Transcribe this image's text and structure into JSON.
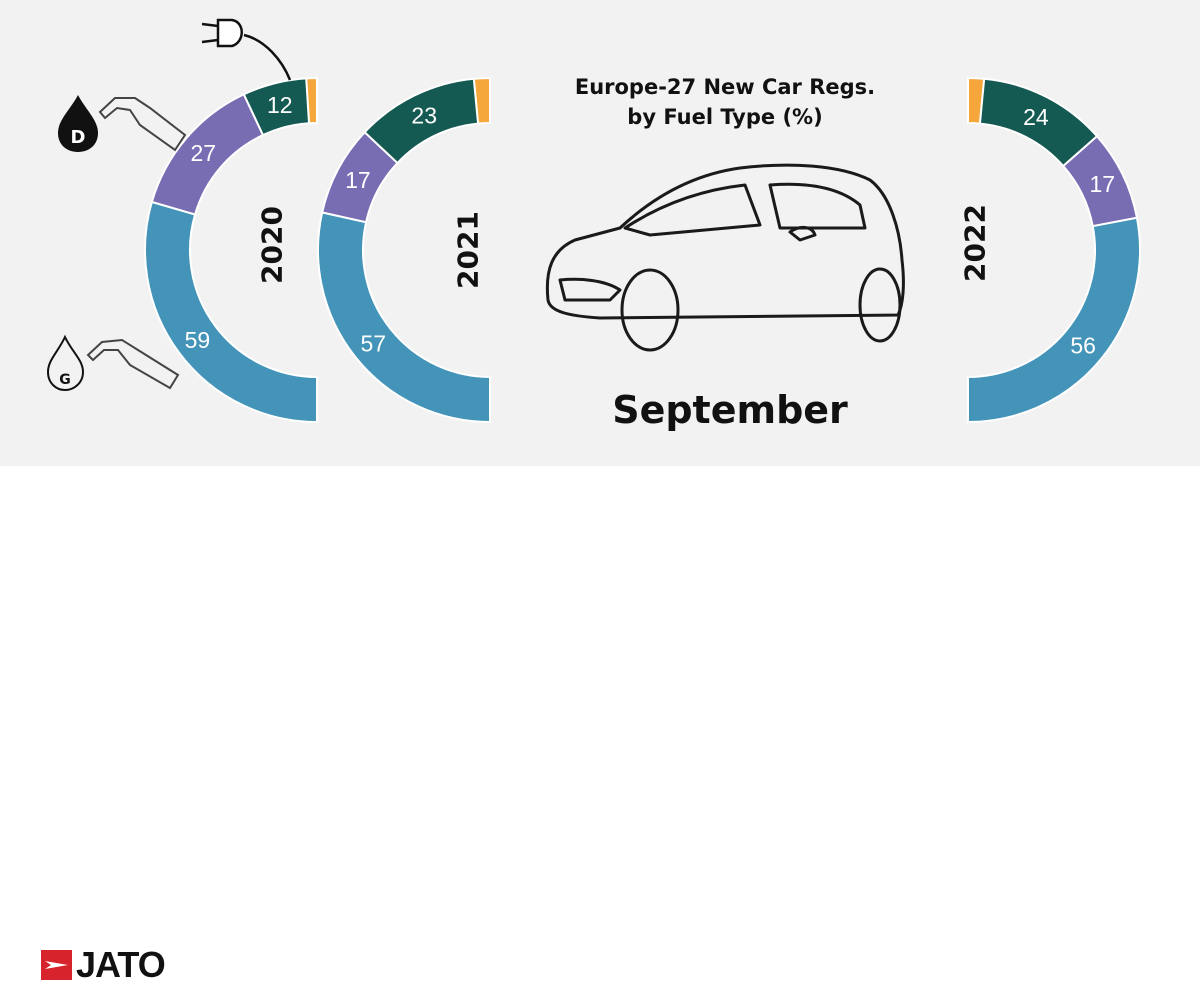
{
  "chart_data": {
    "type": "pie",
    "title": "Europe-27 New Car Regs.\nby Fuel Type (%)",
    "subtitle": "September",
    "colors": {
      "petrol": "#4394b8",
      "diesel": "#786db3",
      "electric": "#155a52",
      "other": "#f5a73c"
    },
    "charts": [
      {
        "year": "2020",
        "side": "left",
        "slices": [
          {
            "fuel": "other",
            "value": 2,
            "label": ""
          },
          {
            "fuel": "electric",
            "value": 12,
            "label": "12"
          },
          {
            "fuel": "diesel",
            "value": 27,
            "label": "27"
          },
          {
            "fuel": "petrol",
            "value": 59,
            "label": "59"
          }
        ]
      },
      {
        "year": "2021",
        "side": "left",
        "slices": [
          {
            "fuel": "other",
            "value": 3,
            "label": ""
          },
          {
            "fuel": "electric",
            "value": 23,
            "label": "23"
          },
          {
            "fuel": "diesel",
            "value": 17,
            "label": "17"
          },
          {
            "fuel": "petrol",
            "value": 57,
            "label": "57"
          }
        ]
      },
      {
        "year": "2022",
        "side": "right",
        "slices": [
          {
            "fuel": "other",
            "value": 3,
            "label": ""
          },
          {
            "fuel": "electric",
            "value": 24,
            "label": "24"
          },
          {
            "fuel": "diesel",
            "value": 17,
            "label": "17"
          },
          {
            "fuel": "petrol",
            "value": 56,
            "label": "56"
          }
        ]
      }
    ]
  },
  "title_line1": "Europe-27 New Car Regs.",
  "title_line2": "by Fuel Type (%)",
  "month": "September",
  "years": [
    "2020",
    "2021",
    "2022"
  ],
  "icons": {
    "plug": "electric-plug-icon",
    "diesel": "diesel-pump-icon",
    "petrol": "petrol-pump-icon",
    "car": "car-outline-icon"
  },
  "diesel_badge": "D",
  "petrol_badge": "G",
  "brand": {
    "name": "JATO",
    "color": "#d7232b"
  }
}
